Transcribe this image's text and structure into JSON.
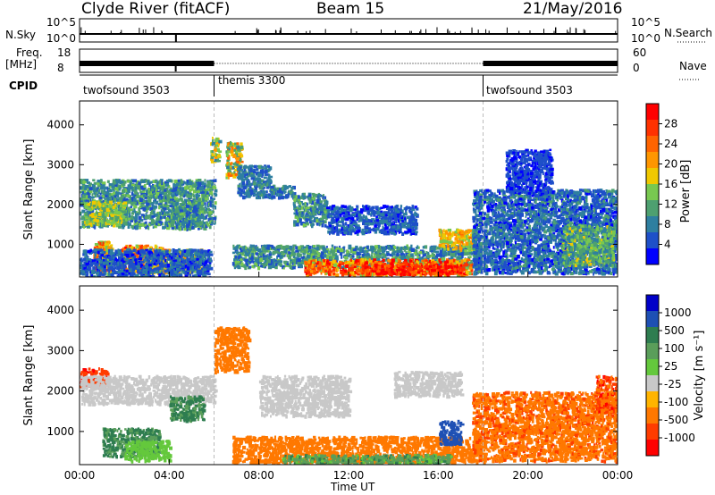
{
  "header": {
    "title": "Clyde River (fitACF)",
    "beam": "Beam 15",
    "date": "21/May/2016"
  },
  "status_panel": {
    "nsky_label": "N.Sky",
    "nsearch_label": "N.Search",
    "nsky_ticks": [
      "10^5",
      "10^0"
    ],
    "nsearch_ticks": [
      "10^5",
      "10^0"
    ],
    "freq_label_1": "Freq.",
    "freq_label_2": "[MHz]",
    "freq_ticks": [
      "18",
      "8"
    ],
    "nave_label": "Nave",
    "nave_ticks": [
      "60",
      "0"
    ],
    "cpid_label": "CPID",
    "cpid_segments": [
      {
        "name": "twofsound 3503",
        "start_h": 0,
        "end_h": 6
      },
      {
        "name": "themis 3300",
        "start_h": 6,
        "end_h": 18
      },
      {
        "name": "twofsound 3503",
        "start_h": 18,
        "end_h": 24
      }
    ]
  },
  "colors": {
    "power_scale": [
      "#0000ff",
      "#1e50c8",
      "#2e7fa0",
      "#4ea070",
      "#78c850",
      "#f0c800",
      "#ff9600",
      "#ff6400",
      "#ff3200",
      "#ff0000"
    ],
    "velocity_scale": [
      "#0000c8",
      "#1e50b4",
      "#2e7d50",
      "#5a9e5a",
      "#64c83c",
      "#c8c8c8",
      "#ffb400",
      "#ff7800",
      "#ff3c00",
      "#ff0000"
    ]
  },
  "chart_data": [
    {
      "type": "heatmap",
      "panel": "power",
      "xlabel": "",
      "ylabel": "Slant Range [km]",
      "x_range_h": [
        0,
        24
      ],
      "ylim": [
        180,
        4600
      ],
      "yticks": [
        "1000",
        "2000",
        "3000",
        "4000"
      ],
      "colorbar_label": "Power [dB]",
      "colorbar_ticks": [
        "4",
        "8",
        "12",
        "16",
        "20",
        "24",
        "28"
      ],
      "colorbar_range": [
        0,
        30
      ],
      "blobs": [
        {
          "x": [
            0.0,
            6.0
          ],
          "y": [
            1450,
            2650
          ],
          "v": [
            4,
            14
          ]
        },
        {
          "x": [
            0.2,
            2.0
          ],
          "y": [
            1500,
            2100
          ],
          "v": [
            10,
            18
          ]
        },
        {
          "x": [
            0.6,
            1.4
          ],
          "y": [
            280,
            1100
          ],
          "v": [
            12,
            26
          ]
        },
        {
          "x": [
            1.8,
            3.8
          ],
          "y": [
            300,
            1000
          ],
          "v": [
            14,
            28
          ]
        },
        {
          "x": [
            3.0,
            5.5
          ],
          "y": [
            300,
            900
          ],
          "v": [
            6,
            20
          ]
        },
        {
          "x": [
            0.0,
            5.8
          ],
          "y": [
            180,
            900
          ],
          "v": [
            2,
            8
          ]
        },
        {
          "x": [
            4.0,
            5.5
          ],
          "y": [
            1400,
            2100
          ],
          "v": [
            4,
            14
          ]
        },
        {
          "x": [
            6.5,
            7.2
          ],
          "y": [
            2700,
            3600
          ],
          "v": [
            8,
            24
          ]
        },
        {
          "x": [
            5.8,
            6.2
          ],
          "y": [
            3100,
            3700
          ],
          "v": [
            8,
            20
          ]
        },
        {
          "x": [
            7.0,
            8.5
          ],
          "y": [
            2200,
            3000
          ],
          "v": [
            4,
            10
          ]
        },
        {
          "x": [
            8.5,
            9.5
          ],
          "y": [
            2200,
            2500
          ],
          "v": [
            4,
            10
          ]
        },
        {
          "x": [
            9.5,
            11.0
          ],
          "y": [
            1500,
            2300
          ],
          "v": [
            4,
            14
          ]
        },
        {
          "x": [
            11.0,
            15.0
          ],
          "y": [
            1300,
            2000
          ],
          "v": [
            2,
            8
          ]
        },
        {
          "x": [
            6.8,
            18.0
          ],
          "y": [
            450,
            1000
          ],
          "v": [
            4,
            14
          ]
        },
        {
          "x": [
            10.0,
            17.5
          ],
          "y": [
            250,
            650
          ],
          "v": [
            14,
            30
          ]
        },
        {
          "x": [
            12.5,
            17.0
          ],
          "y": [
            280,
            520
          ],
          "v": [
            22,
            32
          ]
        },
        {
          "x": [
            16.0,
            17.5
          ],
          "y": [
            900,
            1400
          ],
          "v": [
            12,
            22
          ]
        },
        {
          "x": [
            17.5,
            24.0
          ],
          "y": [
            300,
            2400
          ],
          "v": [
            2,
            10
          ]
        },
        {
          "x": [
            21.5,
            23.8
          ],
          "y": [
            500,
            1500
          ],
          "v": [
            6,
            16
          ]
        },
        {
          "x": [
            19.0,
            21.0
          ],
          "y": [
            2300,
            3400
          ],
          "v": [
            2,
            6
          ]
        }
      ]
    },
    {
      "type": "heatmap",
      "panel": "velocity",
      "xlabel": "Time UT",
      "ylabel": "Slant Range [km]",
      "x_range_h": [
        0,
        24
      ],
      "xticks": [
        "00:00",
        "04:00",
        "08:00",
        "12:00",
        "16:00",
        "20:00",
        "00:00"
      ],
      "ylim": [
        180,
        4600
      ],
      "yticks": [
        "1000",
        "2000",
        "3000",
        "4000"
      ],
      "colorbar_label": "Velocity [m s⁻¹]",
      "colorbar_ticks": [
        "1000",
        "500",
        "100",
        "25",
        "-25",
        "-100",
        "-500",
        "-1000"
      ],
      "blobs": [
        {
          "x": [
            0.0,
            1.2
          ],
          "y": [
            2100,
            2600
          ],
          "v": [
            -500,
            -1000
          ]
        },
        {
          "x": [
            0.0,
            6.0
          ],
          "y": [
            1700,
            2400
          ],
          "v": [
            -25,
            25
          ]
        },
        {
          "x": [
            1.0,
            3.5
          ],
          "y": [
            400,
            1100
          ],
          "v": [
            100,
            500
          ]
        },
        {
          "x": [
            2.0,
            4.0
          ],
          "y": [
            300,
            800
          ],
          "v": [
            25,
            100
          ]
        },
        {
          "x": [
            4.0,
            5.5
          ],
          "y": [
            1300,
            1900
          ],
          "v": [
            100,
            500
          ]
        },
        {
          "x": [
            6.0,
            7.5
          ],
          "y": [
            2500,
            3600
          ],
          "v": [
            -100,
            -500
          ]
        },
        {
          "x": [
            8.0,
            12.0
          ],
          "y": [
            1400,
            2400
          ],
          "v": [
            -25,
            25
          ]
        },
        {
          "x": [
            6.8,
            18.0
          ],
          "y": [
            250,
            900
          ],
          "v": [
            -100,
            -500
          ]
        },
        {
          "x": [
            9.0,
            16.5
          ],
          "y": [
            200,
            450
          ],
          "v": [
            50,
            300
          ]
        },
        {
          "x": [
            16.0,
            17.0
          ],
          "y": [
            700,
            1300
          ],
          "v": [
            500,
            1000
          ]
        },
        {
          "x": [
            17.5,
            24.0
          ],
          "y": [
            300,
            2000
          ],
          "v": [
            -100,
            -600
          ]
        },
        {
          "x": [
            23.0,
            24.0
          ],
          "y": [
            1500,
            2400
          ],
          "v": [
            -300,
            -900
          ]
        },
        {
          "x": [
            14.0,
            17.0
          ],
          "y": [
            1900,
            2500
          ],
          "v": [
            -25,
            25
          ]
        }
      ]
    }
  ]
}
